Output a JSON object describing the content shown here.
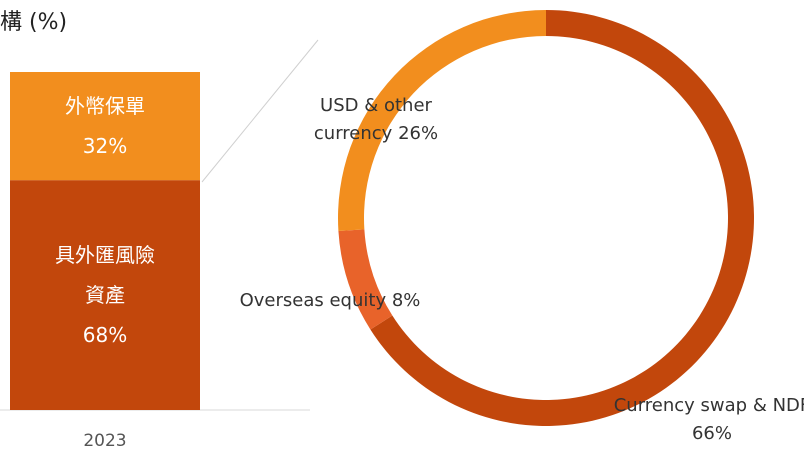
{
  "chart_data": [
    {
      "type": "stacked_bar",
      "title": "構 (%)",
      "categories": [
        "2023"
      ],
      "ylim": [
        0,
        100
      ],
      "series": [
        {
          "name": "具外匯風險資產",
          "color": "#c2470c",
          "values": [
            68
          ],
          "value_labels": [
            "68%"
          ]
        },
        {
          "name": "外幣保單",
          "color": "#f28e1e",
          "values": [
            32
          ],
          "value_labels": [
            "32%"
          ]
        }
      ]
    },
    {
      "type": "donut",
      "categories": [
        "Currency swap & NDF",
        "Overseas equity",
        "USD & other currency"
      ],
      "values": [
        66,
        8,
        26
      ],
      "value_labels": [
        "66%",
        "8%",
        "26%"
      ],
      "colors": [
        "#c2470c",
        "#e8632a",
        "#f28e1e"
      ]
    }
  ]
}
